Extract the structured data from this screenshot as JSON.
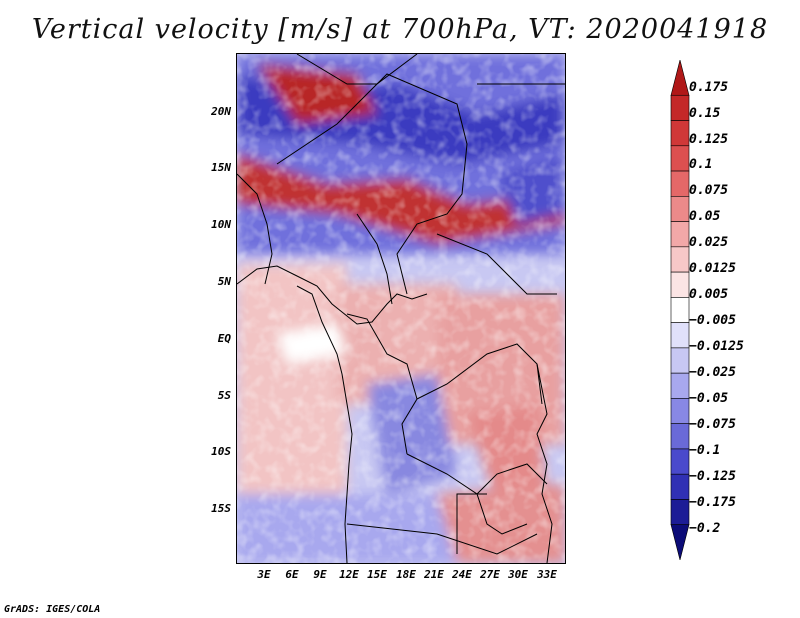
{
  "title": "Vertical velocity [m/s] at 700hPa, VT: 2020041918",
  "credit": "GrADS: IGES/COLA",
  "map": {
    "lat_labels": [
      "20N",
      "15N",
      "10N",
      "5N",
      "EQ",
      "5S",
      "10S",
      "15S"
    ],
    "lon_labels": [
      "3E",
      "6E",
      "9E",
      "12E",
      "15E",
      "18E",
      "21E",
      "24E",
      "27E",
      "30E",
      "33E"
    ]
  },
  "colorbar": {
    "labels": [
      "0.175",
      "0.15",
      "0.125",
      "0.1",
      "0.075",
      "0.05",
      "0.025",
      "0.0125",
      "0.005",
      "−0.005",
      "−0.0125",
      "−0.025",
      "−0.05",
      "−0.075",
      "−0.1",
      "−0.125",
      "−0.175",
      "−0.2"
    ],
    "colors": [
      "#b01818",
      "#c42828",
      "#d03838",
      "#dc5050",
      "#e46868",
      "#ec8a8a",
      "#f2a8a8",
      "#f7c8c8",
      "#fbe4e4",
      "#ffffff",
      "#e0e0fa",
      "#c8c8f4",
      "#a8a8ee",
      "#8888e4",
      "#6a6ad8",
      "#4a4acc",
      "#3030b4",
      "#1c1c96",
      "#0c0c78"
    ]
  }
}
